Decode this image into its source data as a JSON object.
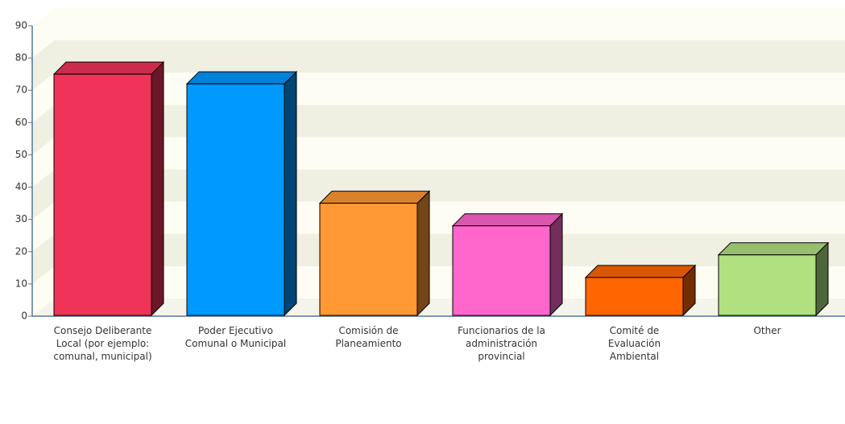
{
  "chart_data": {
    "type": "bar",
    "categories": [
      "Consejo Deliberante Local (por ejemplo: comunal, municipal)",
      "Poder Ejecutivo Comunal o Municipal",
      "Comisión de Planeamiento",
      "Funcionarios de la administración provincial",
      "Comité de Evaluación Ambiental",
      "Other"
    ],
    "values": [
      75,
      72,
      35,
      28,
      12,
      19
    ],
    "colors": [
      "#f03458",
      "#0099ff",
      "#ff9933",
      "#ff66cc",
      "#ff6600",
      "#b0e080"
    ],
    "ylim": [
      0,
      90
    ],
    "yticks": [
      0,
      10,
      20,
      30,
      40,
      50,
      60,
      70,
      80,
      90
    ],
    "grid": true
  }
}
